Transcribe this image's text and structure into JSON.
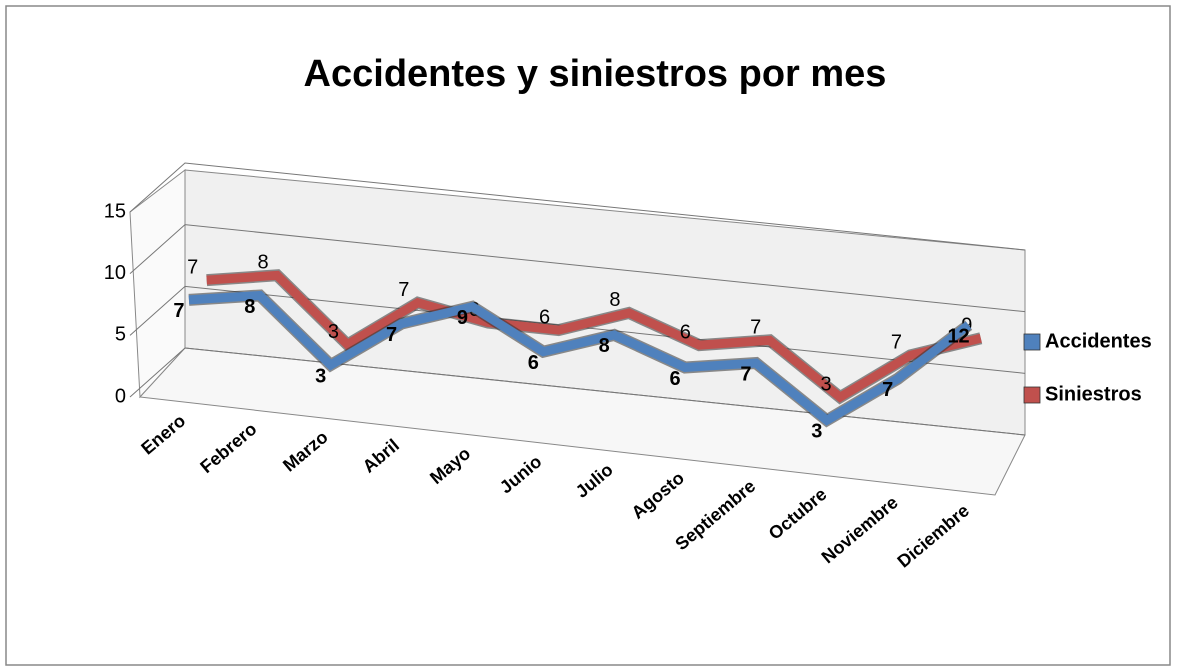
{
  "chart_data": {
    "type": "line3d",
    "title": "Accidentes y siniestros por mes",
    "categories": [
      "Enero",
      "Febrero",
      "Marzo",
      "Abril",
      "Mayo",
      "Junio",
      "Julio",
      "Agosto",
      "Septiembre",
      "Octubre",
      "Noviembre",
      "Diciembre"
    ],
    "series": [
      {
        "name": "Accidentes",
        "color": "#4f81bd",
        "values": [
          7,
          8,
          3,
          7,
          9,
          6,
          8,
          6,
          7,
          3,
          7,
          12
        ]
      },
      {
        "name": "Siniestros",
        "color": "#c0504d",
        "values": [
          7,
          8,
          3,
          7,
          6,
          6,
          8,
          6,
          7,
          3,
          7,
          9
        ]
      }
    ],
    "ylim": [
      0,
      15
    ],
    "yticks": [
      0,
      5,
      10,
      15
    ],
    "grid": true,
    "legend": "right"
  }
}
